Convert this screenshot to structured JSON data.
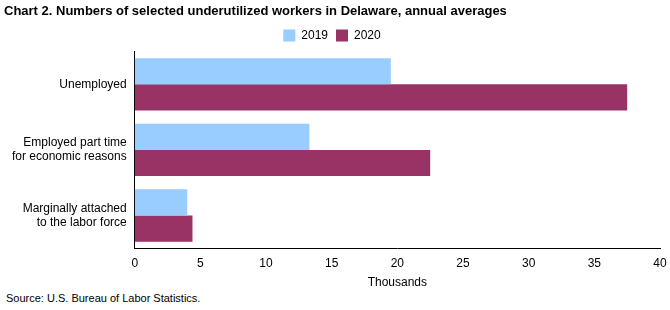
{
  "chart_data": {
    "type": "bar",
    "orientation": "horizontal",
    "title": "Chart 2. Numbers of selected underutilized workers in Delaware, annual averages",
    "categories": [
      "Unemployed",
      "Employed part time for economic reasons",
      "Marginally attached to the labor force"
    ],
    "series": [
      {
        "name": "2019",
        "color": "#99ccff",
        "values": [
          19.5,
          13.3,
          4.0
        ]
      },
      {
        "name": "2020",
        "color": "#993366",
        "values": [
          37.5,
          22.5,
          4.4
        ]
      }
    ],
    "x_label": "Thousands",
    "xlim": [
      0,
      40
    ],
    "xticks": [
      0,
      5,
      10,
      15,
      20,
      25,
      30,
      35,
      40
    ],
    "grid": false,
    "legend": "top",
    "source": "Source: U.S. Bureau of Labor Statistics."
  }
}
